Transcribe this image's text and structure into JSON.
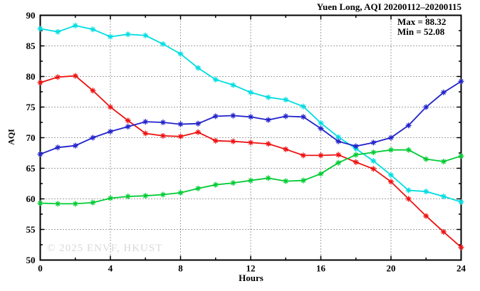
{
  "title": "Yuen Long, AQI 20200112–20200115",
  "annotation": {
    "max_label": "Max = 88.32",
    "min_label": "Min = 52.08"
  },
  "watermark": "© 2025 ENVF, HKUST",
  "chart_data": {
    "type": "line",
    "title": "Yuen Long, AQI 20200112–20200115",
    "xlabel": "Hours",
    "ylabel": "AQI",
    "xlim": [
      0,
      24
    ],
    "ylim": [
      50,
      90
    ],
    "grid": true,
    "legend": "none",
    "x_major_ticks": [
      0,
      4,
      8,
      12,
      16,
      20,
      24
    ],
    "x_tick_labels": [
      "0",
      "4",
      "8",
      "12",
      "16",
      "20",
      "24"
    ],
    "x_minor_step": 2,
    "y_major_ticks": [
      50,
      55,
      60,
      65,
      70,
      75,
      80,
      85,
      90
    ],
    "y_tick_labels": [
      "50",
      "55",
      "60",
      "65",
      "70",
      "75",
      "80",
      "85",
      "90"
    ],
    "y_minor_step": 2.5,
    "marker": "asterisk",
    "stats": {
      "max": 88.32,
      "min": 52.08
    },
    "x": [
      0,
      1,
      2,
      3,
      4,
      5,
      6,
      7,
      8,
      9,
      10,
      11,
      12,
      13,
      14,
      15,
      16,
      17,
      18,
      19,
      20,
      21,
      22,
      23,
      24
    ],
    "series": [
      {
        "name": "cyan-series",
        "color": "#00DDE2",
        "values": [
          87.8,
          87.3,
          88.32,
          87.7,
          86.5,
          86.9,
          86.7,
          85.3,
          83.7,
          81.4,
          79.5,
          78.6,
          77.4,
          76.6,
          76.2,
          75.1,
          72.4,
          70.1,
          68.2,
          66.2,
          63.9,
          61.4,
          61.2,
          60.4,
          59.5
        ]
      },
      {
        "name": "red-series",
        "color": "#EE1111",
        "values": [
          79.0,
          79.9,
          80.1,
          77.7,
          75.0,
          72.8,
          70.7,
          70.3,
          70.2,
          70.9,
          69.5,
          69.4,
          69.2,
          69.0,
          68.1,
          67.1,
          67.1,
          67.2,
          66.0,
          64.9,
          62.8,
          60.0,
          57.2,
          54.6,
          52.08
        ]
      },
      {
        "name": "blue-series",
        "color": "#2222CC",
        "values": [
          67.3,
          68.4,
          68.7,
          70.0,
          71.0,
          71.8,
          72.6,
          72.5,
          72.2,
          72.3,
          73.5,
          73.6,
          73.4,
          72.9,
          73.5,
          73.4,
          71.5,
          69.4,
          68.6,
          69.2,
          70.0,
          72.0,
          75.0,
          77.4,
          79.2
        ]
      },
      {
        "name": "green-series",
        "color": "#00CC33",
        "values": [
          59.3,
          59.2,
          59.2,
          59.4,
          60.1,
          60.4,
          60.5,
          60.7,
          61.0,
          61.7,
          62.3,
          62.6,
          63.0,
          63.4,
          62.9,
          63.0,
          64.1,
          65.9,
          67.2,
          67.6,
          68.0,
          68.0,
          66.5,
          66.1,
          67.0
        ]
      }
    ],
    "style": {
      "grid_color": "#444444",
      "border_color": "#000000",
      "text_color": "#000000"
    }
  }
}
